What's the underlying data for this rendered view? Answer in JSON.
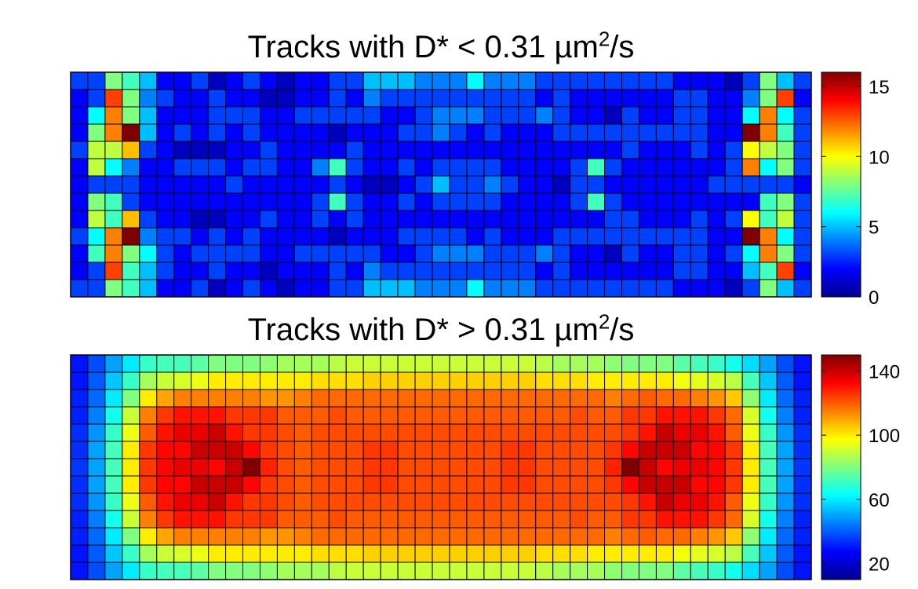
{
  "chart_data": [
    {
      "type": "heatmap",
      "title_parts": [
        "Tracks with D* < 0.31 µm",
        "2",
        "/s"
      ],
      "rows": 13,
      "cols": 43,
      "colormap": "jet",
      "clim": [
        0,
        16
      ],
      "colorbar_ticks": [
        0,
        5,
        10,
        15
      ],
      "values": [
        [
          3,
          3,
          8,
          7,
          5,
          2,
          2,
          3,
          1,
          2,
          3,
          2,
          1,
          2,
          2,
          3,
          3,
          5,
          5,
          5,
          4,
          4,
          4,
          6,
          4,
          4,
          4,
          3,
          3,
          3,
          3,
          3,
          3,
          3,
          3,
          2,
          2,
          2,
          1,
          3,
          8,
          5,
          3
        ],
        [
          2,
          3,
          13,
          8,
          4,
          3,
          2,
          2,
          3,
          2,
          2,
          1,
          1,
          2,
          2,
          3,
          2,
          4,
          3,
          3,
          3,
          3,
          3,
          3,
          3,
          3,
          3,
          2,
          3,
          2,
          2,
          2,
          2,
          2,
          2,
          3,
          3,
          2,
          2,
          4,
          8,
          13,
          2
        ],
        [
          2,
          6,
          12,
          8,
          5,
          2,
          2,
          2,
          3,
          3,
          3,
          2,
          2,
          3,
          3,
          3,
          3,
          3,
          2,
          2,
          3,
          4,
          4,
          4,
          3,
          3,
          3,
          4,
          3,
          2,
          2,
          1,
          3,
          2,
          2,
          3,
          3,
          2,
          2,
          6,
          12,
          6,
          3
        ],
        [
          2,
          8,
          12,
          16,
          5,
          2,
          3,
          2,
          3,
          2,
          3,
          2,
          2,
          2,
          2,
          1,
          2,
          2,
          2,
          3,
          3,
          4,
          3,
          2,
          3,
          2,
          2,
          2,
          3,
          3,
          3,
          3,
          3,
          3,
          3,
          3,
          3,
          2,
          2,
          16,
          12,
          7,
          3
        ],
        [
          3,
          9,
          9,
          11,
          3,
          2,
          1,
          1,
          1,
          2,
          2,
          3,
          2,
          2,
          2,
          2,
          3,
          2,
          2,
          2,
          2,
          2,
          2,
          2,
          2,
          2,
          2,
          2,
          2,
          2,
          2,
          2,
          3,
          2,
          2,
          2,
          3,
          2,
          3,
          10,
          9,
          8,
          3
        ],
        [
          2,
          9,
          6,
          4,
          2,
          2,
          3,
          3,
          3,
          2,
          3,
          3,
          2,
          2,
          4,
          7,
          3,
          2,
          2,
          3,
          2,
          3,
          3,
          3,
          3,
          2,
          2,
          2,
          2,
          3,
          7,
          3,
          2,
          2,
          2,
          2,
          2,
          2,
          3,
          12,
          6,
          8,
          3
        ],
        [
          2,
          3,
          3,
          3,
          2,
          2,
          2,
          2,
          2,
          3,
          2,
          2,
          2,
          2,
          2,
          3,
          2,
          1,
          1,
          2,
          3,
          5,
          3,
          3,
          4,
          3,
          2,
          2,
          1,
          3,
          3,
          2,
          2,
          2,
          2,
          2,
          2,
          3,
          3,
          3,
          3,
          3,
          2
        ],
        [
          2,
          8,
          7,
          3,
          2,
          2,
          2,
          2,
          2,
          2,
          2,
          2,
          2,
          2,
          3,
          7,
          3,
          2,
          2,
          3,
          2,
          3,
          3,
          3,
          3,
          2,
          2,
          2,
          2,
          3,
          7,
          3,
          2,
          2,
          2,
          2,
          2,
          2,
          2,
          2,
          7,
          8,
          3
        ],
        [
          2,
          9,
          7,
          11,
          3,
          2,
          2,
          1,
          1,
          2,
          2,
          3,
          2,
          2,
          3,
          2,
          3,
          2,
          2,
          2,
          2,
          2,
          2,
          2,
          2,
          2,
          2,
          2,
          2,
          2,
          2,
          3,
          3,
          2,
          2,
          2,
          3,
          2,
          3,
          10,
          7,
          9,
          3
        ],
        [
          3,
          6,
          12,
          16,
          4,
          3,
          3,
          2,
          3,
          2,
          3,
          2,
          2,
          2,
          2,
          1,
          2,
          2,
          2,
          3,
          3,
          3,
          3,
          2,
          3,
          2,
          2,
          2,
          3,
          3,
          3,
          3,
          3,
          3,
          3,
          3,
          3,
          2,
          2,
          16,
          12,
          6,
          3
        ],
        [
          2,
          7,
          12,
          8,
          6,
          3,
          2,
          3,
          3,
          3,
          3,
          2,
          2,
          3,
          3,
          3,
          3,
          3,
          2,
          2,
          3,
          4,
          4,
          4,
          3,
          3,
          3,
          4,
          3,
          2,
          2,
          1,
          3,
          2,
          2,
          3,
          3,
          2,
          3,
          6,
          12,
          8,
          3
        ],
        [
          2,
          3,
          13,
          7,
          5,
          3,
          2,
          2,
          3,
          2,
          2,
          1,
          2,
          2,
          2,
          3,
          2,
          4,
          3,
          3,
          3,
          3,
          3,
          3,
          3,
          3,
          3,
          2,
          3,
          2,
          2,
          2,
          2,
          2,
          2,
          3,
          3,
          2,
          2,
          5,
          7,
          13,
          2
        ],
        [
          3,
          3,
          8,
          7,
          5,
          2,
          2,
          3,
          1,
          2,
          3,
          2,
          1,
          2,
          2,
          3,
          3,
          5,
          5,
          5,
          4,
          4,
          4,
          6,
          4,
          4,
          4,
          3,
          3,
          3,
          3,
          3,
          3,
          3,
          3,
          2,
          2,
          2,
          1,
          3,
          8,
          5,
          3
        ]
      ]
    },
    {
      "type": "heatmap",
      "title_parts": [
        "Tracks with D* > 0.31 µm",
        "2",
        "/s"
      ],
      "rows": 13,
      "cols": 43,
      "colormap": "jet",
      "clim": [
        10,
        150
      ],
      "colorbar_ticks": [
        20,
        60,
        100,
        140
      ],
      "values": [
        [
          30,
          38,
          50,
          60,
          70,
          72,
          72,
          75,
          80,
          80,
          80,
          82,
          85,
          85,
          85,
          88,
          90,
          90,
          90,
          90,
          90,
          90,
          90,
          90,
          90,
          90,
          90,
          88,
          85,
          85,
          85,
          82,
          80,
          80,
          80,
          75,
          72,
          70,
          65,
          58,
          50,
          38,
          30
        ],
        [
          30,
          40,
          55,
          70,
          85,
          90,
          92,
          95,
          100,
          100,
          100,
          100,
          100,
          100,
          102,
          102,
          102,
          104,
          104,
          104,
          104,
          104,
          104,
          104,
          104,
          104,
          104,
          102,
          102,
          102,
          100,
          100,
          100,
          100,
          100,
          96,
          94,
          92,
          88,
          72,
          55,
          40,
          30
        ],
        [
          32,
          42,
          60,
          80,
          100,
          110,
          115,
          115,
          115,
          115,
          115,
          112,
          112,
          115,
          118,
          118,
          118,
          118,
          118,
          118,
          118,
          118,
          118,
          118,
          118,
          118,
          118,
          118,
          118,
          118,
          118,
          115,
          118,
          120,
          118,
          118,
          115,
          112,
          105,
          82,
          60,
          42,
          32
        ],
        [
          32,
          45,
          65,
          90,
          115,
          125,
          130,
          130,
          130,
          125,
          125,
          125,
          120,
          120,
          120,
          122,
          120,
          120,
          120,
          120,
          120,
          120,
          120,
          120,
          120,
          120,
          120,
          120,
          120,
          122,
          120,
          120,
          125,
          125,
          130,
          130,
          130,
          125,
          118,
          92,
          65,
          45,
          32
        ],
        [
          34,
          48,
          70,
          95,
          120,
          130,
          135,
          135,
          140,
          130,
          125,
          125,
          122,
          120,
          122,
          122,
          122,
          122,
          122,
          122,
          122,
          122,
          122,
          122,
          122,
          122,
          122,
          122,
          122,
          122,
          122,
          122,
          125,
          130,
          140,
          135,
          135,
          130,
          120,
          95,
          70,
          48,
          34
        ],
        [
          34,
          50,
          72,
          100,
          125,
          132,
          132,
          140,
          140,
          140,
          132,
          125,
          122,
          120,
          122,
          122,
          122,
          125,
          125,
          122,
          122,
          122,
          122,
          122,
          122,
          125,
          125,
          122,
          122,
          122,
          122,
          125,
          132,
          140,
          140,
          140,
          132,
          132,
          125,
          100,
          72,
          50,
          34
        ],
        [
          35,
          50,
          72,
          100,
          125,
          132,
          135,
          135,
          132,
          140,
          150,
          128,
          122,
          120,
          122,
          122,
          122,
          125,
          125,
          122,
          122,
          122,
          122,
          122,
          122,
          125,
          125,
          122,
          122,
          122,
          122,
          128,
          150,
          140,
          132,
          135,
          135,
          132,
          125,
          100,
          72,
          50,
          35
        ],
        [
          34,
          50,
          72,
          100,
          125,
          132,
          132,
          140,
          140,
          140,
          132,
          125,
          122,
          120,
          122,
          122,
          122,
          125,
          125,
          122,
          122,
          122,
          122,
          122,
          122,
          125,
          125,
          122,
          122,
          122,
          122,
          125,
          132,
          140,
          140,
          140,
          132,
          132,
          125,
          100,
          72,
          50,
          34
        ],
        [
          34,
          48,
          70,
          95,
          120,
          130,
          135,
          135,
          140,
          130,
          125,
          125,
          122,
          120,
          122,
          122,
          122,
          122,
          122,
          122,
          122,
          122,
          122,
          122,
          122,
          122,
          122,
          122,
          122,
          122,
          122,
          122,
          125,
          130,
          140,
          135,
          135,
          130,
          120,
          95,
          70,
          48,
          34
        ],
        [
          32,
          45,
          65,
          90,
          115,
          125,
          130,
          130,
          130,
          125,
          125,
          125,
          120,
          120,
          120,
          122,
          120,
          120,
          120,
          120,
          120,
          120,
          120,
          120,
          120,
          120,
          120,
          120,
          120,
          122,
          120,
          120,
          125,
          125,
          130,
          130,
          130,
          125,
          118,
          92,
          65,
          45,
          32
        ],
        [
          32,
          42,
          60,
          80,
          100,
          110,
          115,
          115,
          115,
          115,
          115,
          112,
          112,
          115,
          118,
          118,
          118,
          118,
          118,
          118,
          118,
          118,
          118,
          118,
          118,
          118,
          118,
          118,
          118,
          118,
          118,
          115,
          118,
          120,
          118,
          118,
          115,
          112,
          105,
          82,
          60,
          42,
          32
        ],
        [
          30,
          40,
          55,
          70,
          85,
          90,
          92,
          95,
          100,
          100,
          100,
          100,
          100,
          100,
          102,
          102,
          102,
          104,
          104,
          104,
          104,
          104,
          104,
          104,
          104,
          104,
          104,
          102,
          102,
          102,
          100,
          100,
          100,
          100,
          100,
          96,
          94,
          92,
          88,
          72,
          55,
          40,
          30
        ],
        [
          30,
          38,
          50,
          60,
          70,
          72,
          72,
          75,
          80,
          80,
          80,
          82,
          85,
          85,
          85,
          88,
          90,
          90,
          90,
          90,
          90,
          90,
          90,
          90,
          90,
          90,
          90,
          88,
          85,
          85,
          85,
          82,
          80,
          80,
          80,
          75,
          72,
          70,
          65,
          58,
          50,
          38,
          30
        ]
      ]
    }
  ]
}
